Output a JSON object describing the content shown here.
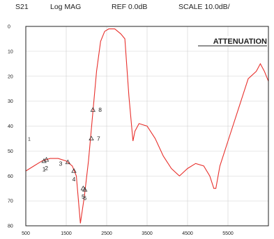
{
  "header": {
    "param": "S21",
    "format": "Log MAG",
    "ref": "REF 0.0dB",
    "scale": "SCALE 10.0dB/"
  },
  "colors": {
    "trace": "#e8302c",
    "grid": "#d0d0d0",
    "frame": "#222222"
  },
  "chart_data": {
    "type": "line",
    "title": "ATTENUATION",
    "xlabel": "",
    "ylabel": "",
    "xlim": [
      500,
      6500
    ],
    "ylim": [
      80,
      0
    ],
    "x_ticks": [
      500,
      1500,
      2500,
      3500,
      4500,
      5500
    ],
    "y_ticks": [
      0,
      10,
      20,
      30,
      40,
      50,
      60,
      70,
      80
    ],
    "grid": true,
    "side_label": "1",
    "series": [
      {
        "x": [
          500,
          700,
          900,
          1100,
          1300,
          1500,
          1650,
          1750,
          1850,
          1950,
          2050,
          2150,
          2250,
          2350,
          2450,
          2550,
          2700,
          2850,
          2950,
          3050,
          3150,
          3200,
          3300,
          3500,
          3700,
          3900,
          4100,
          4300,
          4500,
          4700,
          4900,
          5050,
          5150,
          5200,
          5300,
          5500,
          5800,
          6000,
          6200,
          6300,
          6400,
          6500
        ],
        "y": [
          58,
          56,
          54,
          53,
          53,
          54,
          56,
          60,
          79,
          68,
          54,
          36,
          18,
          6,
          2,
          1,
          1,
          3,
          5,
          28,
          46,
          42,
          39,
          40,
          45,
          52,
          57,
          60,
          57,
          55,
          56,
          60,
          65,
          65,
          56,
          46,
          31,
          21,
          18,
          15,
          18,
          22
        ]
      }
    ],
    "markers": [
      {
        "label": "1",
        "x": 950,
        "y": 54
      },
      {
        "label": "2",
        "x": 1010,
        "y": 53.5
      },
      {
        "label": "3",
        "x": 1540,
        "y": 54.5
      },
      {
        "label": "4",
        "x": 1690,
        "y": 58
      },
      {
        "label": "5",
        "x": 1920,
        "y": 65
      },
      {
        "label": "6",
        "x": 1960,
        "y": 65.5
      },
      {
        "label": "7",
        "x": 2120,
        "y": 45
      },
      {
        "label": "8",
        "x": 2160,
        "y": 33.5
      }
    ]
  }
}
